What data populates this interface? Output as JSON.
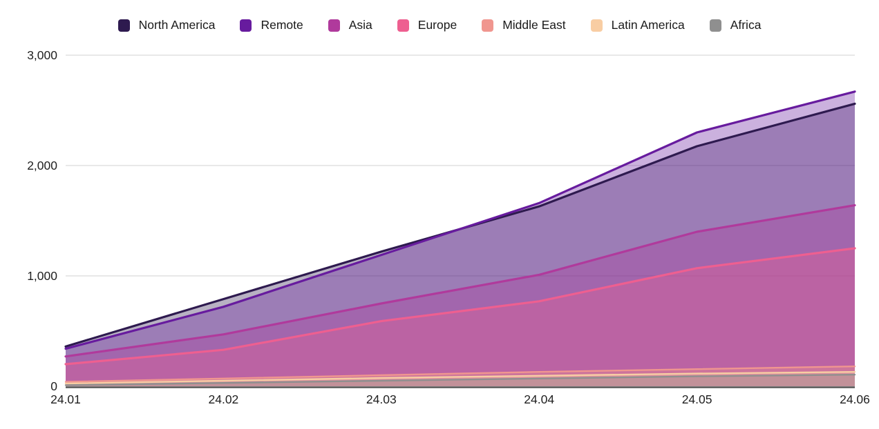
{
  "page": {
    "background": "#ffffff"
  },
  "chart_data": {
    "type": "area",
    "stacked": false,
    "overlapping_transparent_areas": true,
    "title": "",
    "xlabel": "",
    "ylabel": "",
    "categories": [
      "24.01",
      "24.02",
      "24.03",
      "24.04",
      "24.05",
      "24.06"
    ],
    "series": [
      {
        "name": "North America",
        "color": "#2e1a4f",
        "values": [
          360,
          790,
          1220,
          1630,
          2175,
          2560
        ]
      },
      {
        "name": "Remote",
        "color": "#671b9e",
        "values": [
          340,
          720,
          1190,
          1660,
          2300,
          2670
        ]
      },
      {
        "name": "Asia",
        "color": "#b03a9c",
        "values": [
          270,
          470,
          750,
          1010,
          1400,
          1640
        ]
      },
      {
        "name": "Europe",
        "color": "#ee5f90",
        "values": [
          200,
          330,
          590,
          770,
          1070,
          1250
        ]
      },
      {
        "name": "Middle East",
        "color": "#f0968f",
        "values": [
          40,
          70,
          100,
          130,
          155,
          180
        ]
      },
      {
        "name": "Latin America",
        "color": "#f8cda3",
        "values": [
          25,
          50,
          75,
          95,
          115,
          130
        ]
      },
      {
        "name": "Africa",
        "color": "#8f8f8f",
        "values": [
          10,
          30,
          50,
          70,
          90,
          105
        ]
      }
    ],
    "ylim": [
      0,
      3000
    ],
    "yticks": [
      {
        "value": 0,
        "label": "0"
      },
      {
        "value": 1000,
        "label": "1,000"
      },
      {
        "value": 2000,
        "label": "2,000"
      },
      {
        "value": 3000,
        "label": "3,000"
      }
    ],
    "grid": true,
    "gridline_color": "#d9d9d9",
    "axis_line_color": "#545454",
    "fill_opacity": 0.34,
    "legend_position": "top"
  }
}
